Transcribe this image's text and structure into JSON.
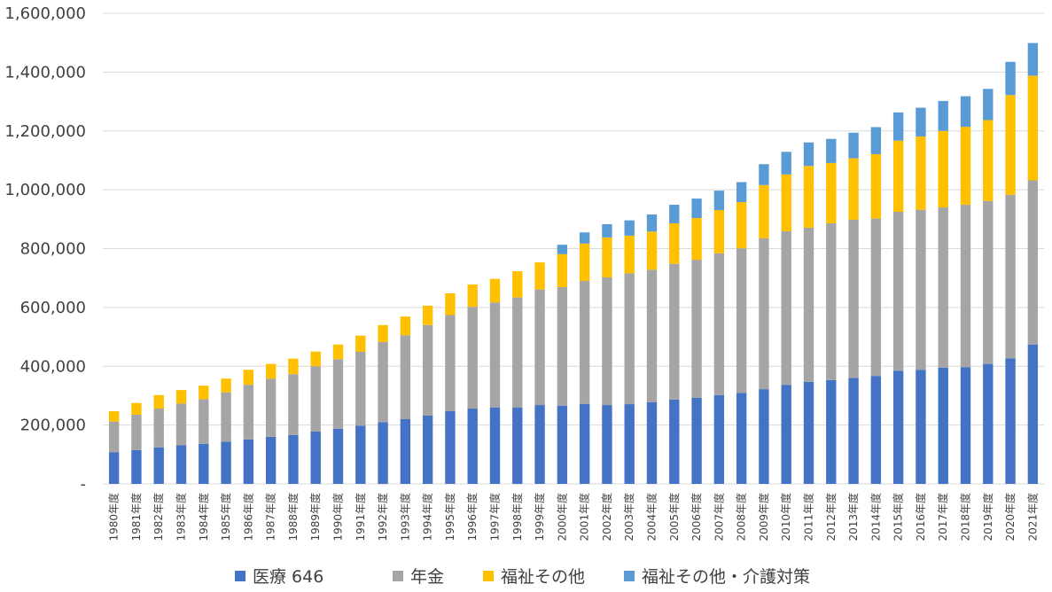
{
  "chart_data": {
    "type": "bar",
    "stacked": true,
    "categories": [
      "1980年度",
      "1981年度",
      "1982年度",
      "1983年度",
      "1984年度",
      "1985年度",
      "1986年度",
      "1987年度",
      "1988年度",
      "1989年度",
      "1990年度",
      "1991年度",
      "1992年度",
      "1993年度",
      "1994年度",
      "1995年度",
      "1996年度",
      "1997年度",
      "1998年度",
      "1999年度",
      "2000年度",
      "2001年度",
      "2002年度",
      "2003年度",
      "2004年度",
      "2005年度",
      "2006年度",
      "2007年度",
      "2008年度",
      "2009年度",
      "2010年度",
      "2011年度",
      "2012年度",
      "2013年度",
      "2014年度",
      "2015年度",
      "2016年度",
      "2017年度",
      "2018年度",
      "2019年度",
      "2020年度",
      "2021年度"
    ],
    "series": [
      {
        "name": "医療 646",
        "color": "#4472c4",
        "values": [
          107000,
          115000,
          124000,
          131000,
          136000,
          143000,
          151000,
          160000,
          166000,
          178000,
          187000,
          198000,
          210000,
          220000,
          232000,
          248000,
          256000,
          260000,
          260000,
          268000,
          266000,
          272000,
          268000,
          271000,
          278000,
          287000,
          293000,
          302000,
          309000,
          322000,
          336000,
          347000,
          353000,
          360000,
          367000,
          385000,
          388000,
          395000,
          397000,
          408000,
          427000,
          474000
        ]
      },
      {
        "name": "年金",
        "color": "#a5a5a5",
        "values": [
          105000,
          120000,
          132000,
          142000,
          152000,
          168000,
          186000,
          198000,
          207000,
          222000,
          237000,
          251000,
          272000,
          285000,
          308000,
          326000,
          346000,
          357000,
          374000,
          393000,
          403000,
          418000,
          434000,
          445000,
          450000,
          461000,
          469000,
          482000,
          492000,
          513000,
          523000,
          524000,
          533000,
          538000,
          535000,
          540000,
          544000,
          545000,
          552000,
          554000,
          556000,
          558000
        ]
      },
      {
        "name": "福祉その他",
        "color": "#ffc000",
        "values": [
          35000,
          40000,
          46000,
          46000,
          46000,
          47000,
          51000,
          50000,
          53000,
          50000,
          50000,
          55000,
          58000,
          64000,
          66000,
          74000,
          76000,
          80000,
          89000,
          92000,
          112000,
          127000,
          136000,
          128000,
          130000,
          138000,
          142000,
          147000,
          157000,
          181000,
          193000,
          210000,
          205000,
          209000,
          219000,
          242000,
          249000,
          260000,
          265000,
          275000,
          339000,
          356000
        ]
      },
      {
        "name": "福祉その他・介護対策",
        "color": "#5b9bd5",
        "values": [
          0,
          0,
          0,
          0,
          0,
          0,
          0,
          0,
          0,
          0,
          0,
          0,
          0,
          0,
          0,
          0,
          0,
          0,
          0,
          0,
          32000,
          38000,
          45000,
          52000,
          58000,
          63000,
          66000,
          66000,
          68000,
          71000,
          77000,
          80000,
          82000,
          87000,
          92000,
          96000,
          98000,
          102000,
          104000,
          106000,
          113000,
          111000
        ]
      }
    ],
    "y_ticks": [
      "-",
      "200,000",
      "400,000",
      "600,000",
      "800,000",
      "1,000,000",
      "1,200,000",
      "1,400,000",
      "1,600,000"
    ],
    "ylim": [
      0,
      1600000
    ],
    "grid": true,
    "legend_position": "bottom",
    "title": "",
    "xlabel": "",
    "ylabel": ""
  }
}
